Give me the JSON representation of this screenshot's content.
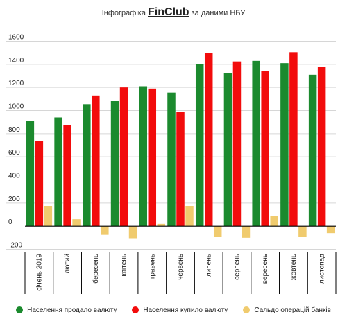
{
  "title": {
    "prefix": "Інфографіка",
    "brand": "FinClub",
    "suffix": "за даними НБУ"
  },
  "colors": {
    "sold": "#1b8a2e",
    "bought": "#f20c0c",
    "balance": "#f0cb6e",
    "grid": "#d6d6d6",
    "axis": "#000000"
  },
  "chart_data": {
    "type": "bar",
    "categories": [
      "січень 2019",
      "лютий",
      "березень",
      "квітень",
      "травень",
      "червень",
      "липень",
      "серпень",
      "вересень",
      "жовтень",
      "листопад"
    ],
    "series": [
      {
        "name": "Населення продало валюту",
        "color": "#1b8a2e",
        "values": [
          910,
          940,
          1055,
          1085,
          1210,
          1155,
          1405,
          1325,
          1430,
          1410,
          1310
        ]
      },
      {
        "name": "Населення купило валюту",
        "color": "#f20c0c",
        "values": [
          735,
          875,
          1130,
          1200,
          1190,
          985,
          1500,
          1425,
          1340,
          1505,
          1375
        ]
      },
      {
        "name": "Сальдо операцій банків",
        "color": "#f0cb6e",
        "values": [
          175,
          60,
          -75,
          -110,
          20,
          175,
          -95,
          -100,
          90,
          -95,
          -60
        ]
      }
    ],
    "yticks": [
      -200,
      0,
      200,
      400,
      600,
      800,
      1000,
      1200,
      1400,
      1600
    ],
    "ylim": [
      -200,
      1600
    ],
    "grid": true,
    "legend": "bottom"
  }
}
